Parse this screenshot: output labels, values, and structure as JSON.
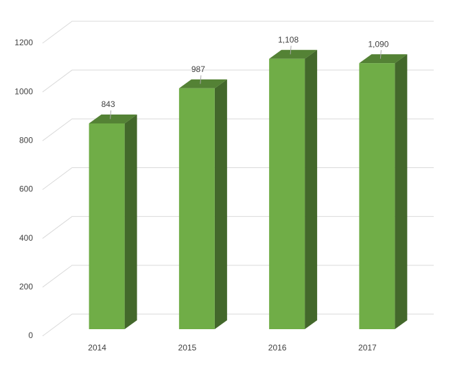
{
  "chart_data": {
    "type": "bar",
    "categories": [
      "2014",
      "2015",
      "2016",
      "2017"
    ],
    "values": [
      843,
      987,
      1108,
      1090
    ],
    "value_labels": [
      "843",
      "987",
      "1,108",
      "1,090"
    ],
    "color": "#70ad47",
    "ylim": [
      0,
      1200
    ],
    "yticks": [
      0,
      200,
      400,
      600,
      800,
      1000,
      1200
    ],
    "grid": true
  }
}
